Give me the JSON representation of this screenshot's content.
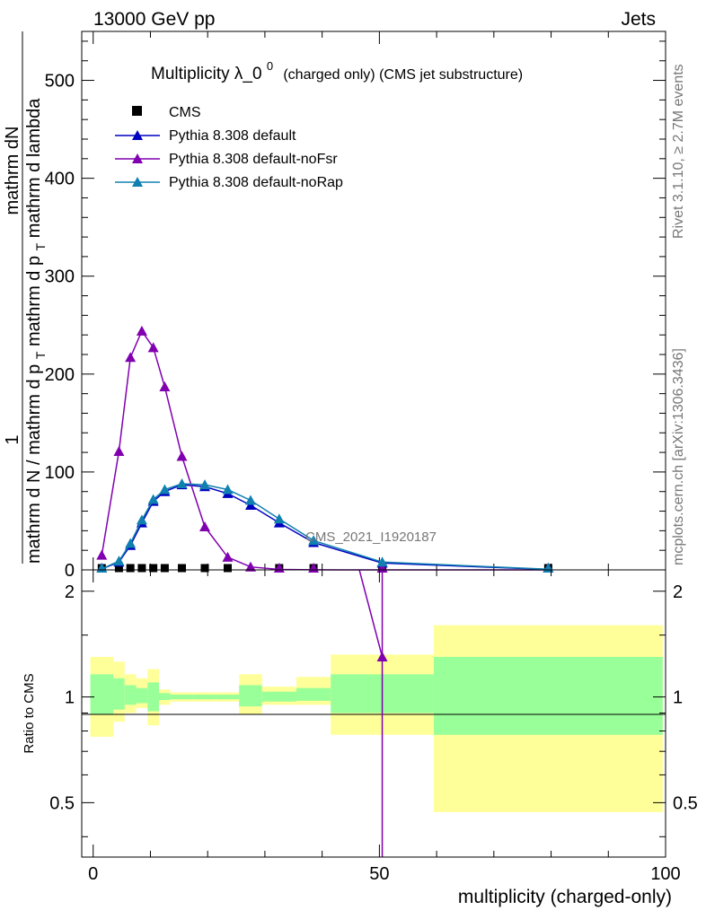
{
  "header": {
    "left": "13000 GeV pp",
    "right": "Jets"
  },
  "side_labels": {
    "rivet": "Rivet 3.1.10, ≥ 2.7M events",
    "mcplots": "mcplots.cern.ch [arXiv:1306.3436]"
  },
  "watermark": "CMS_2021_I1920187",
  "colors": {
    "cms": "#000000",
    "default": "#0000c0",
    "noFsr": "#8000b0",
    "noRap": "#1080b0",
    "band_outer": "#ffff99",
    "band_inner": "#99ff99"
  },
  "chart_data": [
    {
      "type": "line",
      "title": {
        "main": "Multiplicity λ_0",
        "superscript": "0",
        "suffix": "(charged only) (CMS jet substructure)"
      },
      "ylabel": {
        "line1": "1",
        "line2": "mathrm dN",
        "line3": "mathrm d N / mathrm d p",
        "line3_sub": "T",
        "line3_tail": " mathrm d p",
        "line3_sub2": "T",
        "line3_tail2": " mathrm d lambda"
      },
      "xlim": [
        -2,
        100
      ],
      "ylim": [
        0,
        550
      ],
      "yticks": [
        0,
        100,
        200,
        300,
        400,
        500
      ],
      "legend_position": "top-left",
      "series": [
        {
          "name": "CMS",
          "marker": "square",
          "x": [
            1.5,
            4.5,
            6.5,
            8.5,
            10.5,
            12.5,
            15.5,
            19.5,
            23.5,
            32.5,
            38.5,
            50.5,
            79.5
          ],
          "y": [
            0.2,
            0.4,
            0.6,
            0.7,
            0.8,
            0.8,
            0.8,
            0.7,
            0.6,
            0.4,
            0.3,
            0.1,
            0.02
          ]
        },
        {
          "name": "Pythia 8.308 default",
          "marker": "triangle",
          "x": [
            1.5,
            4.5,
            6.5,
            8.5,
            10.5,
            12.5,
            15.5,
            19.5,
            23.5,
            27.5,
            32.5,
            38.5,
            50.5,
            79.5
          ],
          "y": [
            1,
            8,
            25,
            48,
            70,
            80,
            87,
            85,
            78,
            66,
            48,
            28,
            7,
            0.5
          ]
        },
        {
          "name": "Pythia 8.308 default-noFsr",
          "marker": "triangle",
          "x": [
            1.5,
            4.5,
            6.5,
            8.5,
            10.5,
            12.5,
            15.5,
            19.5,
            23.5,
            27.5,
            32.5,
            38.5,
            50.5,
            79.5
          ],
          "y": [
            15,
            121,
            217,
            244,
            227,
            187,
            116,
            44,
            13,
            3,
            0.5,
            0.1,
            0,
            0
          ]
        },
        {
          "name": "Pythia 8.308 default-noRap",
          "marker": "triangle",
          "x": [
            1.5,
            4.5,
            6.5,
            8.5,
            10.5,
            12.5,
            15.5,
            19.5,
            23.5,
            27.5,
            32.5,
            38.5,
            50.5,
            79.5
          ],
          "y": [
            1,
            9,
            27,
            51,
            72,
            82,
            88,
            87,
            82,
            71,
            52,
            30,
            8,
            0.6
          ]
        }
      ]
    },
    {
      "type": "line",
      "ylabel": "Ratio to CMS",
      "xlabel": "multiplicity (charged-only)",
      "xlim": [
        -2,
        100
      ],
      "ylim": [
        0.35,
        2.3
      ],
      "log_y": true,
      "yticks": [
        0.5,
        1,
        2
      ],
      "xticks": [
        0,
        50,
        100
      ],
      "bands": {
        "edges": [
          -0.5,
          3.5,
          5.5,
          7.5,
          9.5,
          11.5,
          13.5,
          17.5,
          21.5,
          25.5,
          29.5,
          35.5,
          41.5,
          59.5,
          99.5
        ],
        "outer_lo": [
          0.77,
          0.85,
          0.9,
          0.93,
          0.83,
          0.95,
          0.97,
          0.97,
          0.97,
          0.89,
          0.95,
          0.95,
          0.78,
          0.47
        ],
        "outer_hi": [
          1.3,
          1.26,
          1.16,
          1.13,
          1.2,
          1.05,
          1.03,
          1.03,
          1.03,
          1.16,
          1.07,
          1.14,
          1.32,
          1.6
        ],
        "inner_lo": [
          0.89,
          0.92,
          0.95,
          0.96,
          0.91,
          0.98,
          0.985,
          0.985,
          0.985,
          0.94,
          0.97,
          0.975,
          0.9,
          0.78
        ],
        "inner_hi": [
          1.16,
          1.13,
          1.08,
          1.06,
          1.1,
          1.025,
          1.015,
          1.015,
          1.015,
          1.08,
          1.035,
          1.06,
          1.16,
          1.3
        ]
      },
      "series": [
        {
          "name": "Pythia 8.308 default-noFsr",
          "x": [
            46.5,
            50.5
          ],
          "y": [
            2.5,
            1.3
          ]
        }
      ]
    }
  ]
}
